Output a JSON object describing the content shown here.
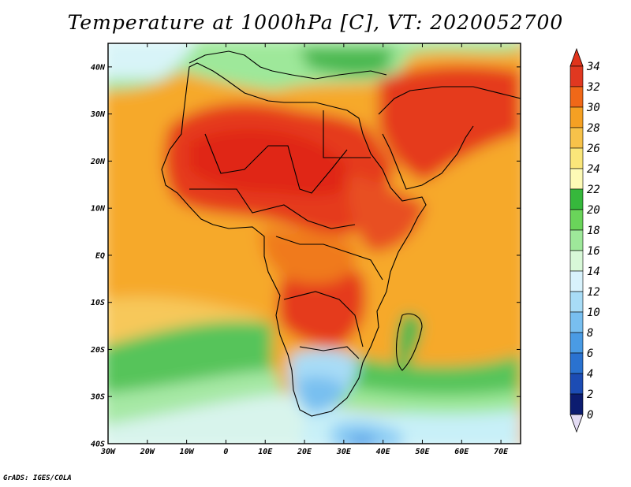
{
  "title": "Temperature at 1000hPa [C], VT: 2020052700",
  "footer": "GrADS: IGES/COLA",
  "map": {
    "lat_range": [
      -40,
      45
    ],
    "lon_range": [
      -30,
      75
    ],
    "lat_ticks": [
      "40N",
      "30N",
      "20N",
      "10N",
      "EQ",
      "10S",
      "20S",
      "30S",
      "40S"
    ],
    "lon_ticks": [
      "30W",
      "20W",
      "10W",
      "0",
      "10E",
      "20E",
      "30E",
      "40E",
      "50E",
      "60E",
      "70E"
    ]
  },
  "colorbar": {
    "levels": [
      "34",
      "32",
      "30",
      "28",
      "26",
      "24",
      "22",
      "20",
      "18",
      "16",
      "14",
      "12",
      "10",
      "8",
      "6",
      "4",
      "2",
      "0"
    ],
    "colors": [
      "#f02010",
      "#e03820",
      "#f06818",
      "#f5a023",
      "#f7c24a",
      "#fae67a",
      "#fdfab6",
      "#36b83c",
      "#6ad45a",
      "#9ee89a",
      "#d8f8d8",
      "#d8f2fc",
      "#a8dcf6",
      "#78bff0",
      "#4a9be4",
      "#2a72d0",
      "#1c4cb4",
      "#0c1c70",
      "#2a1a6a"
    ],
    "top_cap": "#e0341c",
    "bottom_cap": "#e4dcf4"
  }
}
